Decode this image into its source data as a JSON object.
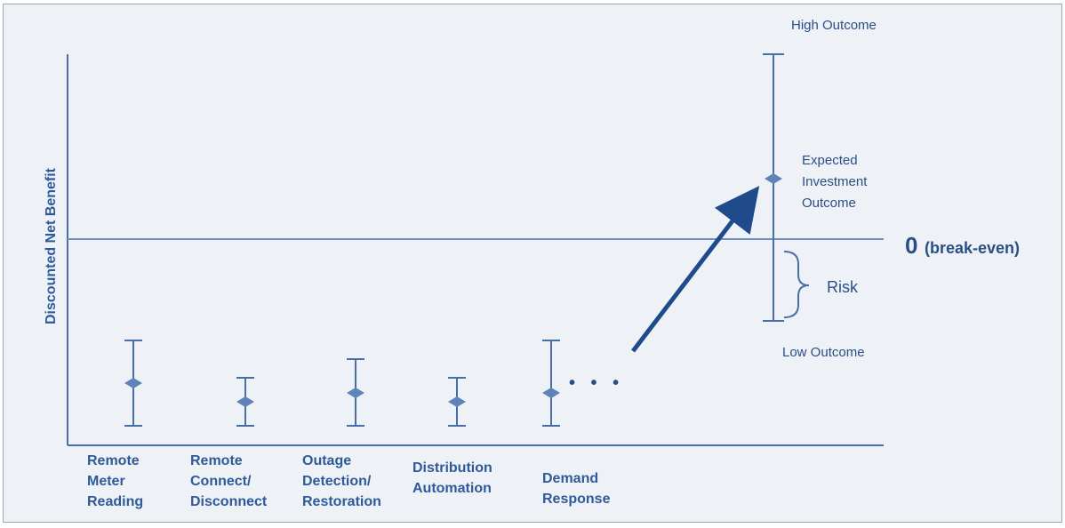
{
  "y_axis_label": "Discounted Net Benefit",
  "breakeven": {
    "zero": "0",
    "text": "(break-even)"
  },
  "annotations": {
    "high": "High Outcome",
    "expected": [
      "Expected",
      "Investment",
      "Outcome"
    ],
    "risk": "Risk",
    "low": "Low Outcome"
  },
  "ellipsis": "• • •",
  "categories": [
    {
      "id": "remote-meter-reading",
      "lines": [
        "Remote",
        "Meter",
        "Reading"
      ]
    },
    {
      "id": "remote-connect-disconnect",
      "lines": [
        "Remote",
        "Connect/",
        "Disconnect"
      ]
    },
    {
      "id": "outage-detection-restoration",
      "lines": [
        "Outage",
        "Detection/",
        "Restoration"
      ]
    },
    {
      "id": "distribution-automation",
      "lines": [
        "Distribution",
        "Automation"
      ]
    },
    {
      "id": "demand-response",
      "lines": [
        "Demand",
        "Response"
      ]
    }
  ],
  "colors": {
    "line": "#4a6ea6",
    "text": "#2f5a9a",
    "arrow": "#1f4a8c",
    "background": "#eef2f7"
  }
}
